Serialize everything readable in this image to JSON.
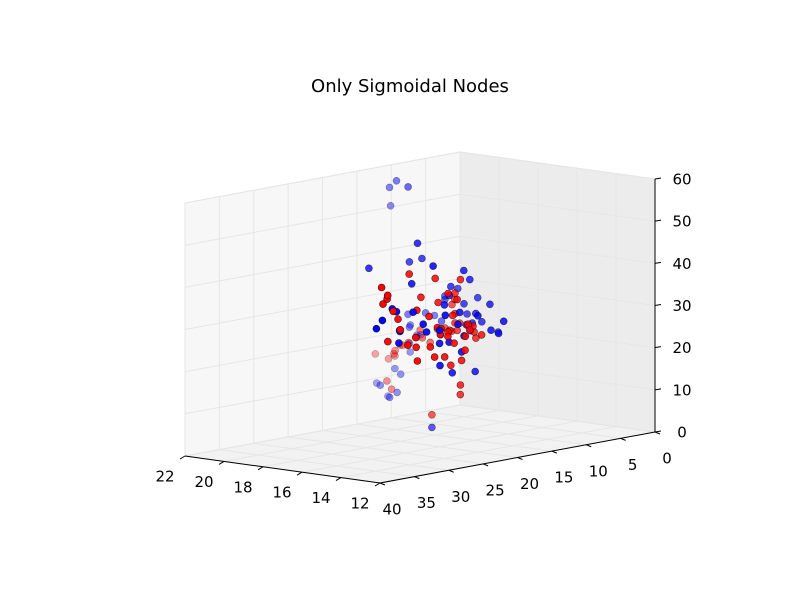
{
  "chart_data": {
    "type": "scatter",
    "title": "Only Sigmoidal Nodes",
    "xlabel": "",
    "ylabel": "",
    "zlabel": "",
    "xlim": [
      0,
      40
    ],
    "ylim": [
      12,
      22
    ],
    "zlim": [
      0,
      60
    ],
    "x_ticks": [
      "0",
      "5",
      "10",
      "15",
      "20",
      "25",
      "30",
      "35",
      "40"
    ],
    "y_ticks": [
      "12",
      "14",
      "16",
      "18",
      "20",
      "22"
    ],
    "z_ticks": [
      "0",
      "10",
      "20",
      "30",
      "40",
      "50",
      "60"
    ],
    "grid": true,
    "series": [
      {
        "color": "#0000ff",
        "marker": "circle",
        "points": [
          [
            12.4,
            21.9,
            9
          ],
          [
            11.9,
            21.5,
            6
          ],
          [
            12.3,
            21.0,
            13
          ],
          [
            11.5,
            20.5,
            17
          ],
          [
            12.6,
            20.6,
            12
          ],
          [
            11.1,
            20.3,
            21
          ],
          [
            13.4,
            20.5,
            8
          ],
          [
            13.3,
            19.9,
            20
          ],
          [
            12.5,
            19.6,
            22
          ],
          [
            12.6,
            20.1,
            24
          ],
          [
            13.6,
            19.8,
            24
          ],
          [
            13.8,
            18.9,
            28
          ],
          [
            12.5,
            18.9,
            27
          ],
          [
            14.0,
            19.3,
            22
          ],
          [
            15.5,
            19.2,
            28
          ],
          [
            14.6,
            17.8,
            27
          ],
          [
            16.1,
            17.1,
            33
          ],
          [
            14.7,
            16.5,
            27
          ],
          [
            15.2,
            16.1,
            26
          ],
          [
            17.0,
            15.1,
            35
          ],
          [
            17.4,
            15.5,
            31
          ],
          [
            16.0,
            14.4,
            27
          ],
          [
            18.1,
            14.5,
            30
          ],
          [
            18.5,
            13.5,
            28
          ],
          [
            19.2,
            13.7,
            35
          ],
          [
            20.3,
            12.6,
            32
          ],
          [
            21.3,
            12.9,
            30
          ],
          [
            23.2,
            12.9,
            34
          ],
          [
            25.5,
            12.8,
            30
          ],
          [
            26.4,
            12.8,
            33
          ],
          [
            28.8,
            12.6,
            36
          ],
          [
            30.2,
            12.4,
            33
          ],
          [
            32.3,
            12.5,
            35
          ],
          [
            34.7,
            12.9,
            31
          ],
          [
            35.1,
            12.7,
            34
          ],
          [
            36.8,
            12.5,
            40
          ],
          [
            38.8,
            12.3,
            38
          ],
          [
            39.1,
            12.5,
            36
          ],
          [
            31.4,
            15.6,
            46
          ],
          [
            24.1,
            16.1,
            45
          ],
          [
            15.2,
            20.2,
            53
          ],
          [
            16.5,
            19.8,
            58
          ],
          [
            16.9,
            19.3,
            60
          ],
          [
            18.9,
            18.0,
            60
          ],
          [
            15.0,
            20.8,
            10
          ],
          [
            14.2,
            20.6,
            7
          ],
          [
            19.4,
            16.6,
            4
          ],
          [
            25.3,
            13.0,
            26
          ],
          [
            25.8,
            13.3,
            21
          ],
          [
            29.0,
            12.8,
            24
          ],
          [
            21.9,
            13.5,
            20
          ],
          [
            26.1,
            13.6,
            37
          ],
          [
            23.4,
            14.3,
            38
          ],
          [
            33.2,
            12.7,
            38
          ],
          [
            21.2,
            15.0,
            39
          ],
          [
            19.2,
            14.6,
            30
          ],
          [
            20.4,
            14.0,
            33
          ],
          [
            28.5,
            13.0,
            29
          ],
          [
            35.9,
            12.6,
            39
          ],
          [
            31.8,
            12.5,
            33
          ],
          [
            22.5,
            13.6,
            31
          ],
          [
            27.4,
            12.9,
            29
          ],
          [
            24.7,
            13.3,
            35
          ],
          [
            17.9,
            15.8,
            37
          ],
          [
            18.7,
            15.2,
            34
          ],
          [
            20.7,
            14.2,
            41
          ],
          [
            22.7,
            13.8,
            44
          ],
          [
            16.4,
            17.0,
            34
          ],
          [
            30.0,
            13.9,
            43
          ],
          [
            28.3,
            13.4,
            47
          ],
          [
            26.6,
            14.8,
            51
          ],
          [
            23.7,
            15.6,
            46
          ]
        ]
      },
      {
        "color": "#ff0000",
        "marker": "circle",
        "points": [
          [
            12.6,
            21.9,
            16
          ],
          [
            12.1,
            21.4,
            15
          ],
          [
            12.3,
            21.0,
            16
          ],
          [
            13.3,
            20.7,
            17
          ],
          [
            13.7,
            20.5,
            18
          ],
          [
            12.7,
            20.6,
            19
          ],
          [
            14.6,
            19.8,
            20
          ],
          [
            14.9,
            19.4,
            21
          ],
          [
            14.3,
            19.0,
            24
          ],
          [
            15.7,
            18.4,
            23
          ],
          [
            15.4,
            18.1,
            22
          ],
          [
            16.6,
            17.3,
            26
          ],
          [
            17.0,
            17.0,
            25
          ],
          [
            17.5,
            16.6,
            27
          ],
          [
            18.5,
            15.9,
            27
          ],
          [
            18.2,
            15.6,
            29
          ],
          [
            19.7,
            15.2,
            28
          ],
          [
            20.5,
            14.4,
            30
          ],
          [
            20.1,
            14.1,
            27
          ],
          [
            21.2,
            13.8,
            29
          ],
          [
            22.5,
            13.4,
            31
          ],
          [
            22.1,
            13.1,
            29
          ],
          [
            23.8,
            13.2,
            32
          ],
          [
            24.4,
            12.9,
            31
          ],
          [
            25.6,
            12.7,
            30
          ],
          [
            26.2,
            12.5,
            27
          ],
          [
            27.5,
            12.6,
            29
          ],
          [
            28.7,
            12.5,
            31
          ],
          [
            29.4,
            12.6,
            33
          ],
          [
            30.1,
            12.4,
            32
          ],
          [
            31.2,
            12.3,
            27
          ],
          [
            33.6,
            12.4,
            30
          ],
          [
            34.0,
            12.2,
            27
          ],
          [
            35.1,
            12.3,
            31
          ],
          [
            36.2,
            12.3,
            35
          ],
          [
            37.8,
            12.1,
            40
          ],
          [
            38.4,
            12.2,
            43
          ],
          [
            39.0,
            12.2,
            42
          ],
          [
            38.6,
            12.1,
            44
          ],
          [
            39.2,
            12.2,
            46
          ],
          [
            14.6,
            20.6,
            11
          ],
          [
            14.2,
            20.5,
            9
          ],
          [
            19.4,
            16.6,
            7
          ],
          [
            21.8,
            14.3,
            14
          ],
          [
            23.2,
            13.8,
            17
          ],
          [
            25.3,
            13.0,
            24
          ],
          [
            26.3,
            13.2,
            23
          ],
          [
            28.6,
            12.7,
            26
          ],
          [
            30.7,
            12.7,
            29
          ],
          [
            33.1,
            12.6,
            32
          ],
          [
            35.4,
            12.7,
            37
          ],
          [
            22.0,
            14.5,
            38
          ],
          [
            23.2,
            13.8,
            42
          ],
          [
            24.8,
            13.4,
            38
          ],
          [
            26.4,
            13.3,
            40
          ],
          [
            28.0,
            13.4,
            44
          ],
          [
            29.8,
            13.5,
            40
          ],
          [
            31.5,
            13.5,
            46
          ],
          [
            30.3,
            12.9,
            36
          ],
          [
            27.3,
            13.5,
            38
          ],
          [
            24.6,
            13.7,
            34
          ],
          [
            21.7,
            14.6,
            33
          ],
          [
            20.3,
            15.1,
            30
          ],
          [
            19.2,
            15.5,
            35
          ],
          [
            17.9,
            16.1,
            33
          ],
          [
            23.9,
            14.1,
            30
          ],
          [
            26.7,
            13.2,
            31
          ],
          [
            29.1,
            12.9,
            33
          ],
          [
            32.1,
            12.9,
            38
          ],
          [
            34.6,
            12.9,
            34
          ],
          [
            36.6,
            12.8,
            32
          ]
        ]
      }
    ]
  }
}
